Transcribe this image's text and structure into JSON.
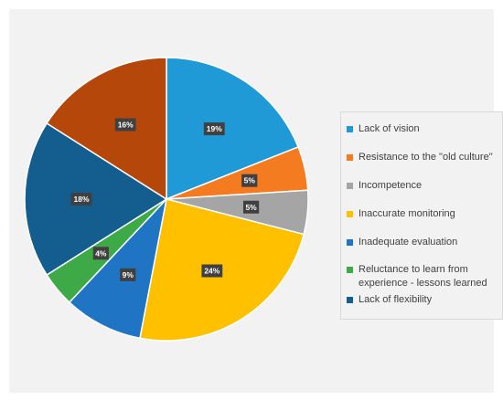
{
  "chart_data": {
    "type": "pie",
    "slices": [
      {
        "name": "Lack of vision",
        "value": 19,
        "label": "19%",
        "color": "#1f9ad6"
      },
      {
        "name": "Resistance to the \"old culture\"",
        "value": 5,
        "label": "5%",
        "color": "#f47b20"
      },
      {
        "name": "Incompetence",
        "value": 5,
        "label": "5%",
        "color": "#a5a5a5"
      },
      {
        "name": "Inaccurate monitoring",
        "value": 24,
        "label": "24%",
        "color": "#ffc000"
      },
      {
        "name": "Inadequate evaluation",
        "value": 9,
        "label": "9%",
        "color": "#1f74c4"
      },
      {
        "name": "Reluctance to learn from experience - lessons learned",
        "value": 4,
        "label": "4%",
        "color": "#3daa47"
      },
      {
        "name": "Lack of flexibility",
        "value": 18,
        "label": "18%",
        "color": "#135d8f"
      },
      {
        "name": "",
        "value": 16,
        "label": "16%",
        "color": "#b6470b"
      }
    ],
    "legend_position": "right"
  }
}
